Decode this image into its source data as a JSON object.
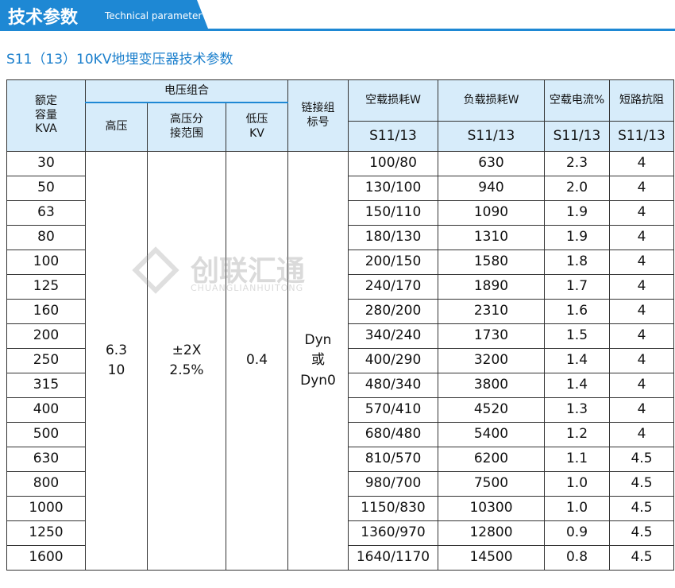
{
  "header": {
    "title": "技术参数",
    "subtitle": "Technical parameter"
  },
  "table_title": "S11（13）10KV地埋变压器技术参数",
  "watermark": {
    "name": "创联汇通",
    "pinyin": "CHUANGLIANHUITONG"
  },
  "table": {
    "headers": {
      "capacity": [
        "额定",
        "容量",
        "KVA"
      ],
      "voltage_group": "电压组合",
      "high_voltage": "高压",
      "tap_range": [
        "高压分",
        "接范围"
      ],
      "low_voltage": [
        "低压",
        "KV"
      ],
      "connection": [
        "链接组",
        "标号"
      ],
      "no_load_loss": "空载损耗W",
      "load_loss": "负载损耗W",
      "no_load_current": "空载电流%",
      "impedance": "短路抗阻",
      "models": [
        "S11/13",
        "S11/13",
        "S11/13",
        "S11/13"
      ]
    },
    "merged": {
      "high_voltage": [
        "6.3",
        "10"
      ],
      "tap_range": [
        "±2X",
        "2.5%"
      ],
      "low_voltage": [
        "0.4"
      ],
      "connection": [
        "Dyn",
        "或",
        "Dyn0"
      ]
    },
    "rows": [
      [
        "30",
        "100/80",
        "630",
        "2.3",
        "4"
      ],
      [
        "50",
        "130/100",
        "940",
        "2.0",
        "4"
      ],
      [
        "63",
        "150/110",
        "1090",
        "1.9",
        "4"
      ],
      [
        "80",
        "180/130",
        "1310",
        "1.9",
        "4"
      ],
      [
        "100",
        "200/150",
        "1580",
        "1.8",
        "4"
      ],
      [
        "125",
        "240/170",
        "1890",
        "1.7",
        "4"
      ],
      [
        "160",
        "280/200",
        "2310",
        "1.6",
        "4"
      ],
      [
        "200",
        "340/240",
        "1730",
        "1.5",
        "4"
      ],
      [
        "250",
        "400/290",
        "3200",
        "1.4",
        "4"
      ],
      [
        "315",
        "480/340",
        "3800",
        "1.4",
        "4"
      ],
      [
        "400",
        "570/410",
        "4520",
        "1.3",
        "4"
      ],
      [
        "500",
        "680/480",
        "5400",
        "1.2",
        "4"
      ],
      [
        "630",
        "810/570",
        "6200",
        "1.1",
        "4.5"
      ],
      [
        "800",
        "980/700",
        "7500",
        "1.0",
        "4.5"
      ],
      [
        "1000",
        "1150/830",
        "10300",
        "1.0",
        "4.5"
      ],
      [
        "1250",
        "1360/970",
        "12800",
        "0.9",
        "4.5"
      ],
      [
        "1600",
        "1640/1170",
        "14500",
        "0.8",
        "4.5"
      ]
    ]
  }
}
